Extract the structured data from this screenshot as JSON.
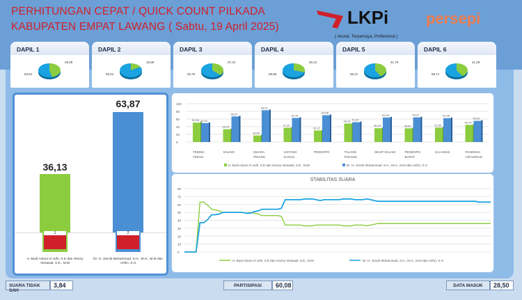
{
  "header": {
    "title_line1": "PERHITUNGAN CEPAT / QUICK COUNT PILKADA",
    "title_line2": "KABUPATEN EMPAT LAWANG ( Sabtu, 19 April 2025)",
    "logo1": "LKPi",
    "logo1_sub": "LEMBAGA KAJIAN PUBLIK INDONESIA",
    "logo1_tagline": "( Akurat, Terpercaya, Profesional )",
    "logo2": "persepi"
  },
  "colors": {
    "green": "#8ccc3f",
    "blue": "#1aa3e0",
    "bar_blue": "#4a8fd4"
  },
  "dapil": [
    {
      "name": "DAPIL 1",
      "green": "46,09",
      "blue": "53,91",
      "g": 46.09
    },
    {
      "name": "DAPIL 2",
      "green": "16,99",
      "blue": "83,01",
      "g": 16.99
    },
    {
      "name": "DAPIL 3",
      "green": "37,24",
      "blue": "62,76",
      "g": 37.24
    },
    {
      "name": "DAPIL 4",
      "green": "30,12",
      "blue": "69,88",
      "g": 30.12
    },
    {
      "name": "DAPIL 5",
      "green": "41,79",
      "blue": "58,21",
      "g": 41.79
    },
    {
      "name": "DAPIL 6",
      "green": "41,29",
      "blue": "58,71",
      "g": 41.29
    }
  ],
  "total": {
    "candidates": [
      {
        "number": "1",
        "value_label": "36,13",
        "value": 36.13,
        "name": "H. Budi Antoni Al Jufri, S.E dan Henny Verawati, S.E., M.M"
      },
      {
        "number": "2",
        "value_label": "63,87",
        "value": 63.87,
        "name": "Dr. H. Joncik Muhammad, S.H., M.H., M.M dan Arifa'i, S.H"
      }
    ]
  },
  "chart_data": [
    {
      "type": "bar",
      "title": "",
      "ylim": [
        0,
        100
      ],
      "yticks": [
        "0",
        "20",
        "40",
        "60",
        "80",
        "100"
      ],
      "categories": [
        [
          "TEBING",
          "TINGGI"
        ],
        [
          "SALING",
          ""
        ],
        [
          "MUARA",
          "PINANG"
        ],
        [
          "LINTANG",
          "KANAN"
        ],
        [
          "PENDOPO",
          ""
        ],
        [
          "TALANG",
          "PADANG"
        ],
        [
          "SIKAP DALAM",
          ""
        ],
        [
          "PENDOPO",
          "BARAT"
        ],
        [
          "ULU MUSI",
          ""
        ],
        [
          "PASEMAH",
          "AIR KERUH"
        ]
      ],
      "series": [
        {
          "name": "H. Budi Antoni Al Jufri, S.E dan Henny Verawati, S.E., M.M",
          "values": [
            50.58,
            33.33,
            16.99,
            37.24,
            30.12,
            48.16,
            36.05,
            35.69,
            37.65,
            44.75
          ],
          "labels": [
            "50,58",
            "33,33",
            "16,99",
            "37,24",
            "30,12",
            "48,16",
            "36,05",
            "35,69",
            "37,65",
            "44,75"
          ]
        },
        {
          "name": "Dr. H. Joncik Muhammad, S.H., M.H., M.M dan Arifa'i, S.H",
          "values": [
            49.42,
            66.67,
            83.01,
            62.76,
            69.88,
            51.84,
            63.95,
            64.31,
            62.35,
            55.25
          ],
          "labels": [
            "49,42",
            "66,67",
            "83,01",
            "62,76",
            "69,88",
            "51,84",
            "63,95",
            "64,31",
            "62,35",
            "55,25"
          ]
        }
      ]
    },
    {
      "type": "line",
      "title": "STABILITAS SUARA",
      "ylim": [
        0,
        80
      ],
      "yticks": [
        "0",
        "10",
        "20",
        "30",
        "40",
        "50",
        "60",
        "70",
        "80"
      ],
      "series": [
        {
          "name": "H. Budi Antoni Al Jufri, S.E dan Henny Verawati, S.E., M.M",
          "values": [
            0,
            0,
            0,
            0,
            63,
            63,
            59,
            54,
            53,
            52,
            50,
            50,
            50,
            50,
            50,
            50,
            49,
            50,
            49,
            48,
            46,
            46,
            46,
            46,
            46,
            45,
            34,
            34,
            34,
            34,
            34,
            33,
            33,
            33,
            34,
            34,
            34,
            34,
            34,
            34,
            34,
            33,
            33,
            33,
            34,
            34,
            34,
            33,
            34,
            35,
            36,
            36,
            36,
            36,
            36,
            36,
            36,
            36,
            36,
            36,
            36,
            36,
            36,
            36,
            36,
            36,
            36,
            36,
            36,
            36,
            36,
            36,
            36,
            36,
            36,
            36,
            36,
            36,
            36,
            36
          ]
        },
        {
          "name": "Dr. H. Joncik Muhammad, S.H., M.H., M.M dan Arifa'i, S.H",
          "values": [
            0,
            0,
            0,
            0,
            37,
            37,
            41,
            47,
            47,
            48,
            50,
            50,
            50,
            50,
            50,
            50,
            49,
            49,
            51,
            52,
            54,
            54,
            54,
            54,
            54,
            55,
            66,
            66,
            66,
            66,
            66,
            67,
            67,
            67,
            66,
            65,
            66,
            66,
            66,
            66,
            66,
            67,
            67,
            67,
            66,
            66,
            66,
            67,
            66,
            65,
            64,
            64,
            64,
            64,
            64,
            64,
            64,
            64,
            64,
            64,
            64,
            64,
            64,
            64,
            64,
            64,
            64,
            64,
            64,
            64,
            64,
            64,
            64,
            64,
            64,
            64,
            63,
            63,
            63,
            63
          ]
        }
      ]
    }
  ],
  "footer": {
    "invalid_label": "SUARA TIDAK SAH",
    "invalid_value": "3,84",
    "participation_label": "PARTISIPASI",
    "participation_value": "60,08",
    "data_in_label": "DATA MASUK",
    "data_in_value": "28,50"
  }
}
